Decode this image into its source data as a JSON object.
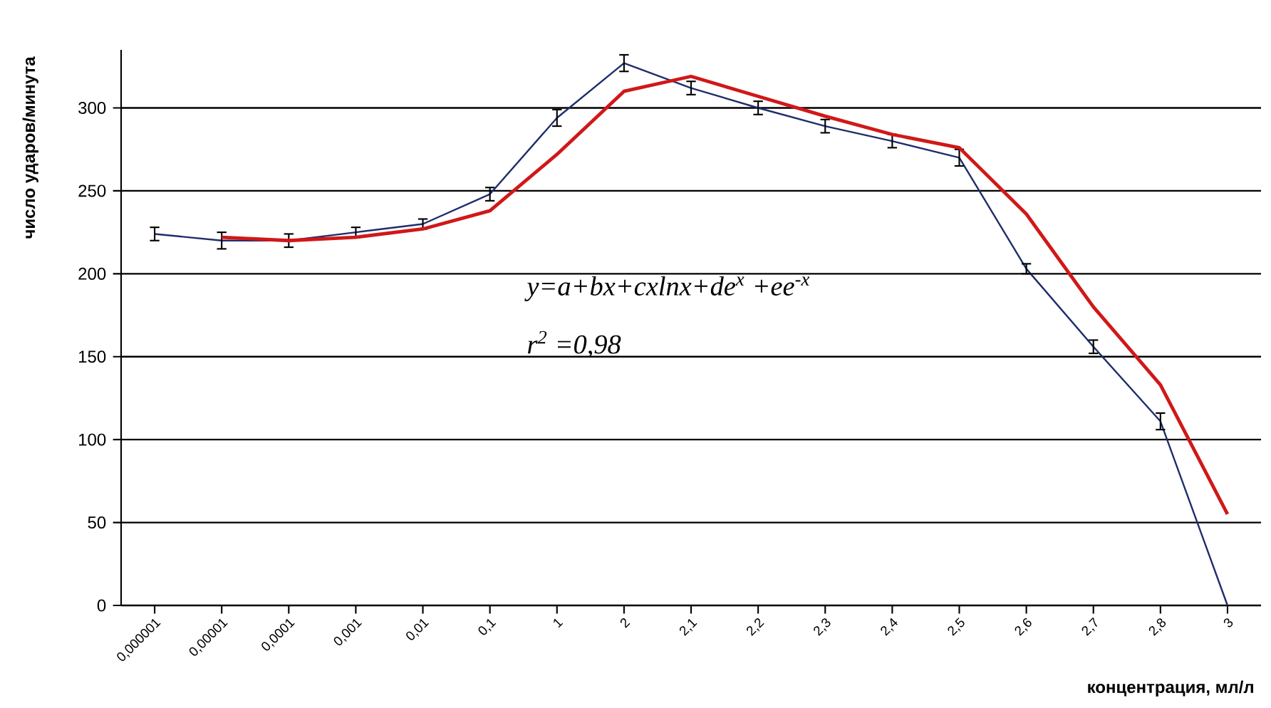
{
  "chart_data": {
    "type": "line",
    "xlabel": "концентрация, мл/л",
    "ylabel": "число ударов/минута",
    "categories": [
      "0,000001",
      "0,00001",
      "0,0001",
      "0,001",
      "0,01",
      "0,1",
      "1",
      "2",
      "2,1",
      "2,2",
      "2,3",
      "2,4",
      "2,5",
      "2,6",
      "2,7",
      "2,8",
      "3"
    ],
    "series": [
      {
        "color": "#1f2d6b",
        "values": [
          224,
          220,
          220,
          225,
          230,
          248,
          294,
          327,
          312,
          300,
          289,
          280,
          270,
          203,
          156,
          111,
          0
        ],
        "errors": [
          4,
          5,
          4,
          3,
          3,
          4,
          5,
          5,
          4,
          4,
          4,
          4,
          5,
          3,
          4,
          5,
          null
        ]
      },
      {
        "color": "#d01818",
        "values": [
          null,
          222,
          220,
          222,
          227,
          238,
          272,
          310,
          319,
          307,
          295,
          284,
          276,
          236,
          180,
          133,
          55
        ]
      }
    ],
    "ylim": [
      0,
      335
    ],
    "yticks": [
      0,
      50,
      100,
      150,
      200,
      250,
      300
    ],
    "grid": "y",
    "annotations": [
      "y=a+bx+cxlnx+de$^{x}$ +ee$^{-x}$",
      "r$^{2}$ =0,98"
    ]
  }
}
